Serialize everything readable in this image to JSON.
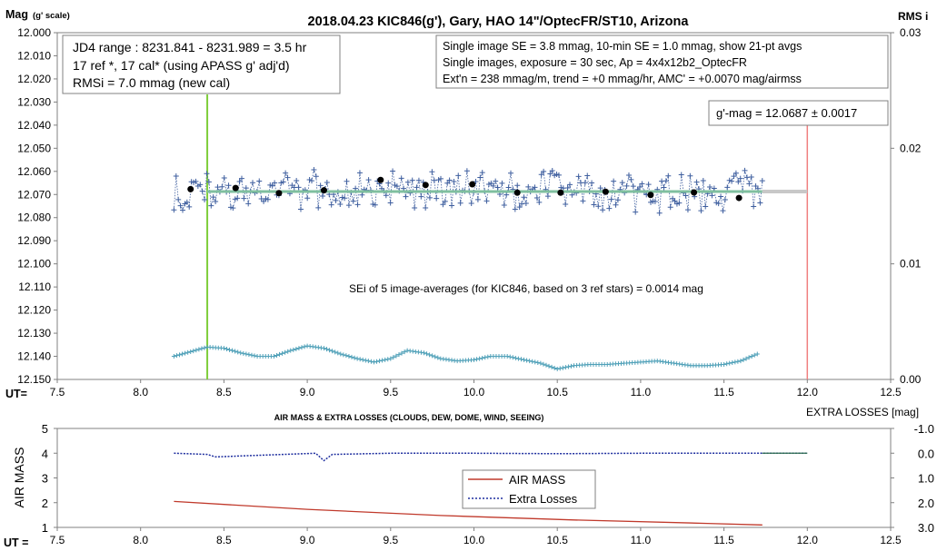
{
  "colors": {
    "obs_series": "#3f5f9f",
    "avg_points": "#000000",
    "rms_series": "#4fa0b8",
    "fit_line": "#7fbf9f",
    "start_line": "#7fce3a",
    "end_line": "#f08080",
    "airmass_line": "#c0392b",
    "extra_loss_line": "#1f2f9f",
    "gridless_axis": "#808080"
  },
  "chart_data": [
    {
      "type": "scatter",
      "title": "2018.04.23  KIC846(g'),  Gary, HAO  14\"/OptecFR/ST10,  Arizona",
      "ylabel": "Mag",
      "ylabel_unit": "(g' scale)",
      "y2label": "RMS i",
      "xlabel": "UT=",
      "xlim": [
        7.5,
        12.5
      ],
      "ylim": [
        12.0,
        12.15
      ],
      "y_inverted": true,
      "y2lim": [
        0.0,
        0.03
      ],
      "x_ticks": [
        "7.5",
        "8.0",
        "8.5",
        "9.0",
        "9.5",
        "10.0",
        "10.5",
        "11.0",
        "11.5",
        "12.0",
        "12.5"
      ],
      "y_ticks": [
        "12.000",
        "12.010",
        "12.020",
        "12.030",
        "12.040",
        "12.050",
        "12.060",
        "12.070",
        "12.080",
        "12.090",
        "12.100",
        "12.110",
        "12.120",
        "12.130",
        "12.140",
        "12.150"
      ],
      "y2_ticks": [
        "0.03",
        "0.02",
        "0.01",
        "0.00"
      ],
      "grid": false,
      "annotations": {
        "box_left": [
          "JD4 range : 8231.841 - 8231.989 = 3.5  hr",
          "17 ref *, 17 cal* (using APASS g' adj'd)",
          "RMSi = 7.0 mmag (new cal)"
        ],
        "box_right": [
          "Single image SE = 3.8 mmag, 10-min SE = 1.0 mmag, show  21-pt avgs",
          "Single images, exposure = 30 sec, Ap = 4x4x12b2_OptecFR",
          "Ext'n = 238 mmag/m, trend =  +0 mmag/hr, AMC' = +0.0070 mag/airmss"
        ],
        "gmag_box": "g'-mag = 12.0687 ± 0.0017",
        "sei_box": "SEi of 5 image-averages (for KIC846, based on 3 ref stars) = 0.0014  mag"
      },
      "vertical_lines": {
        "start_ut": 8.4,
        "end_ut": 12.0
      },
      "fit_level": 12.0687,
      "obs_range": [
        8.2,
        11.73
      ],
      "series": [
        {
          "kind": "averages",
          "x": [
            8.3,
            8.57,
            8.83,
            9.1,
            9.44,
            9.71,
            9.99,
            10.26,
            10.52,
            10.79,
            11.06,
            11.32,
            11.59
          ],
          "values": [
            12.0677,
            12.0672,
            12.0694,
            12.0682,
            12.0637,
            12.0659,
            12.0656,
            12.0692,
            12.0692,
            12.0688,
            12.0702,
            12.0691,
            12.0715
          ]
        },
        {
          "kind": "rms_trace_right_axis",
          "x": [
            8.2,
            8.3,
            8.4,
            8.5,
            8.6,
            8.7,
            8.8,
            8.9,
            9.0,
            9.1,
            9.2,
            9.3,
            9.4,
            9.5,
            9.6,
            9.7,
            9.8,
            9.9,
            10.0,
            10.1,
            10.2,
            10.3,
            10.4,
            10.5,
            10.6,
            10.7,
            10.8,
            10.9,
            11.0,
            11.1,
            11.2,
            11.3,
            11.4,
            11.5,
            11.6,
            11.7
          ],
          "values": [
            0.002,
            0.0024,
            0.0028,
            0.0027,
            0.0023,
            0.002,
            0.002,
            0.0025,
            0.0029,
            0.0027,
            0.0022,
            0.0018,
            0.0015,
            0.0018,
            0.0025,
            0.0023,
            0.0018,
            0.0016,
            0.0017,
            0.002,
            0.002,
            0.0017,
            0.0014,
            0.0009,
            0.0012,
            0.0013,
            0.0013,
            0.0014,
            0.0015,
            0.0016,
            0.0014,
            0.0012,
            0.0012,
            0.0013,
            0.0016,
            0.0022
          ]
        }
      ]
    },
    {
      "type": "line",
      "title": "AIR MASS & EXTRA LOSSES (CLOUDS, DEW, DOME, WIND, SEEING)",
      "ylabel": "AIR MASS",
      "y2label": "EXTRA LOSSES [mag]",
      "xlabel": "UT =",
      "xlim": [
        7.5,
        12.5
      ],
      "ylim": [
        1,
        5
      ],
      "y2lim": [
        -1.0,
        3.0
      ],
      "y2_inverted": true,
      "x_ticks": [
        "7.5",
        "8.0",
        "8.5",
        "9.0",
        "9.5",
        "10.0",
        "10.5",
        "11.0",
        "11.5",
        "12.0",
        "12.5"
      ],
      "y_ticks": [
        "5",
        "4",
        "3",
        "2",
        "1"
      ],
      "y2_ticks": [
        "-1.0",
        "0.0",
        "1.0",
        "2.0",
        "3.0"
      ],
      "legend": [
        "AIR MASS",
        "Extra Losses"
      ],
      "legend_position": "lower-center",
      "series": [
        {
          "name": "AIR MASS",
          "x": [
            8.2,
            9.0,
            9.8,
            10.6,
            11.4,
            11.73
          ],
          "values": [
            2.05,
            1.73,
            1.48,
            1.3,
            1.16,
            1.1
          ]
        },
        {
          "name": "Extra Losses",
          "x": [
            8.2,
            8.4,
            8.45,
            9.05,
            9.1,
            9.15,
            9.5,
            10.0,
            10.5,
            11.0,
            11.5,
            12.0
          ],
          "values": [
            0.0,
            0.05,
            0.15,
            0.0,
            0.3,
            0.05,
            0.0,
            0.0,
            0.02,
            0.0,
            0.0,
            0.0
          ]
        }
      ]
    }
  ]
}
